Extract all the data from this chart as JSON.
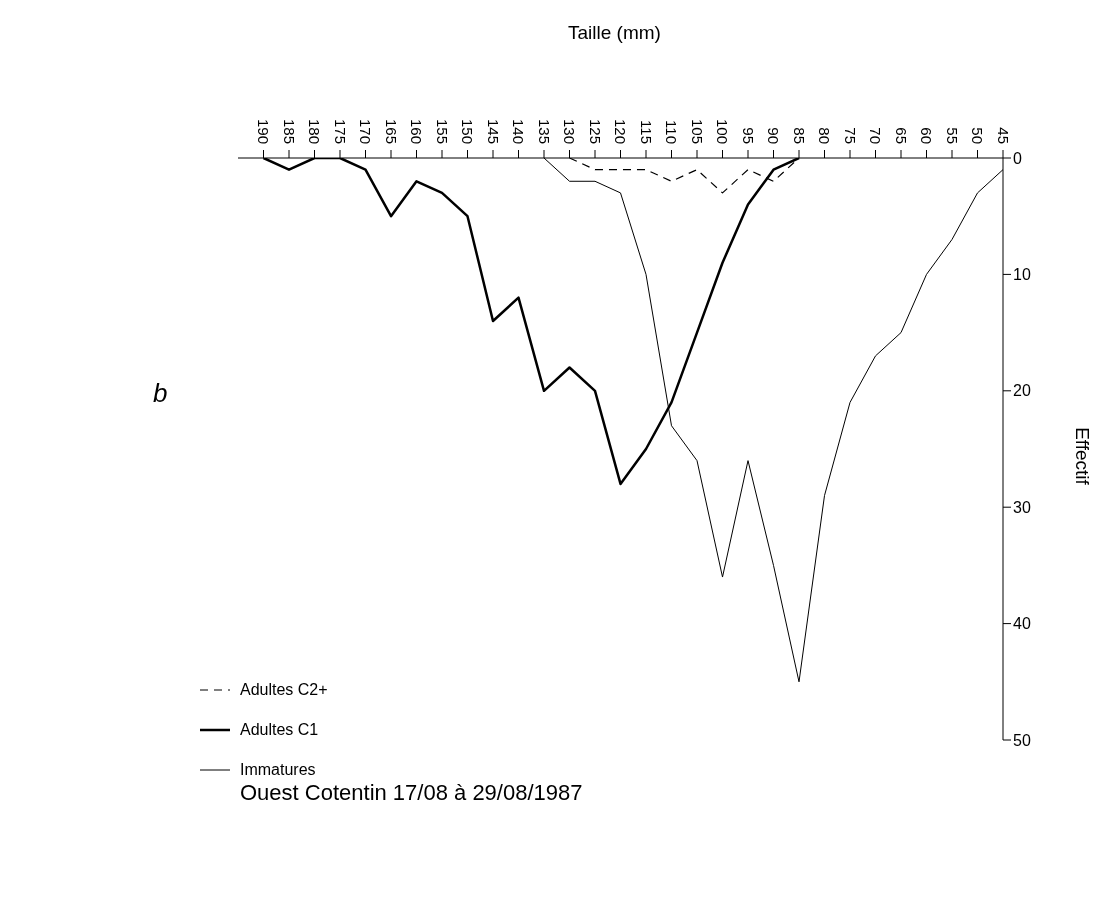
{
  "chart_data": {
    "type": "line",
    "title": "Ouest Cotentin 17/08 à 29/08/1987",
    "xlabel": "Taille (mm)",
    "ylabel": "Effectif",
    "series": [
      {
        "name": "Immatures",
        "color": "#000000",
        "line_style": "solid",
        "x": [
          135,
          130,
          125,
          120,
          115,
          110,
          105,
          100,
          95,
          90,
          85,
          80,
          75,
          70,
          65,
          60,
          55,
          50,
          45
        ],
        "values": [
          0,
          2,
          2,
          3,
          10,
          23,
          26,
          36,
          26,
          35,
          45,
          29,
          21,
          17,
          15,
          10,
          7,
          3,
          1
        ]
      },
      {
        "name": "Adultes C1",
        "color": "#000000",
        "line_style": "solid",
        "x": [
          190,
          185,
          180,
          175,
          170,
          165,
          160,
          155,
          150,
          145,
          140,
          135,
          130,
          125,
          120,
          115,
          110,
          105,
          100,
          95,
          90,
          85
        ],
        "values": [
          0,
          1,
          0,
          0,
          1,
          5,
          2,
          3,
          5,
          14,
          12,
          20,
          18,
          20,
          28,
          25,
          21,
          15,
          9,
          4,
          1,
          0
        ]
      },
      {
        "name": "Adultes C2+",
        "color": "#000000",
        "line_style": "dashed",
        "x": [
          130,
          125,
          120,
          115,
          110,
          105,
          100,
          95,
          90,
          85
        ],
        "values": [
          0,
          1,
          1,
          1,
          2,
          1,
          3,
          1,
          2,
          0
        ]
      }
    ],
    "xlim": [
      195,
      45
    ],
    "xticks": [
      190,
      185,
      180,
      175,
      170,
      165,
      160,
      155,
      150,
      145,
      140,
      135,
      130,
      125,
      120,
      115,
      110,
      105,
      100,
      95,
      90,
      85,
      80,
      75,
      70,
      65,
      60,
      55,
      50,
      45
    ],
    "ylim": [
      50,
      0
    ],
    "yticks": [
      0,
      10,
      20,
      30,
      40,
      50
    ],
    "legend": "bottom left",
    "marker": "none",
    "annotations": [
      "b"
    ]
  }
}
